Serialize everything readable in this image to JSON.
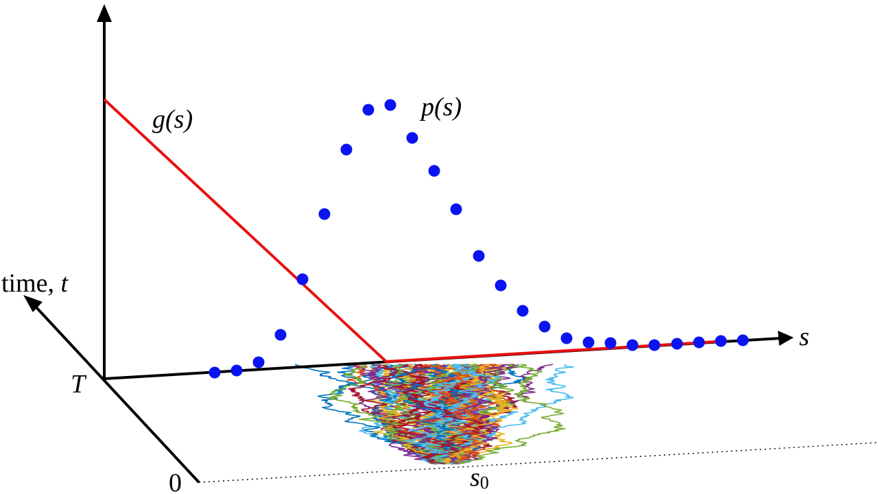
{
  "labels": {
    "g": "g(s)",
    "p": "p(s)",
    "time_word": "time,",
    "time_var": "t",
    "T": "T",
    "zero": "0",
    "s": "s",
    "s0": {
      "base": "s",
      "sub": "0"
    }
  }
}
